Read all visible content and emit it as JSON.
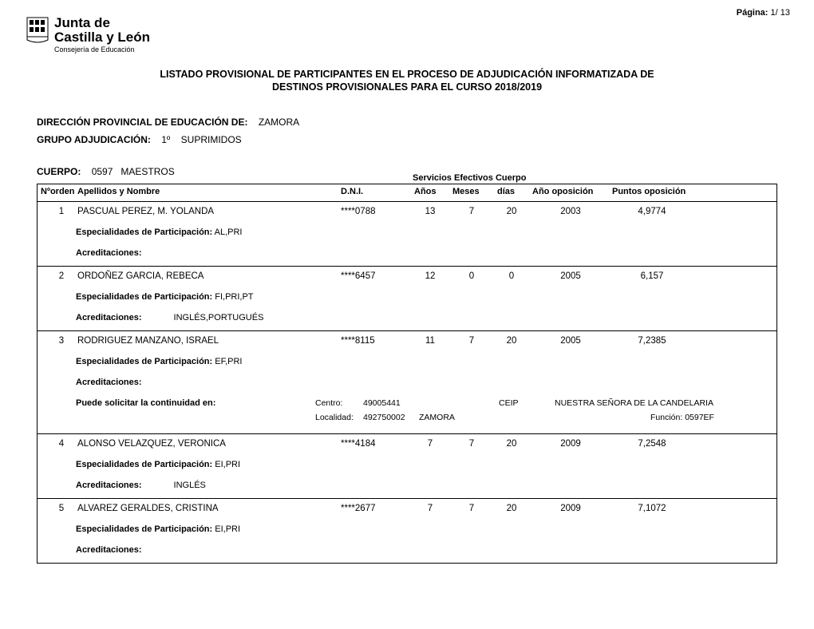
{
  "page": {
    "label": "Página:",
    "value": "1/ 13"
  },
  "logo": {
    "line1": "Junta de",
    "line2": "Castilla y León",
    "line3": "Consejería de Educación"
  },
  "title": {
    "line1": "LISTADO PROVISIONAL DE PARTICIPANTES EN EL PROCESO DE ADJUDICACIÓN INFORMATIZADA DE",
    "line2": "DESTINOS PROVISIONALES PARA EL CURSO 2018/2019"
  },
  "meta": {
    "direccion_lbl": "DIRECCIÓN PROVINCIAL DE EDUCACIÓN DE:",
    "direccion_val": "ZAMORA",
    "grupo_lbl": "GRUPO ADJUDICACIÓN:",
    "grupo_num": "1º",
    "grupo_val": "SUPRIMIDOS",
    "cuerpo_lbl": "CUERPO:",
    "cuerpo_code": "0597",
    "cuerpo_val": "MAESTROS"
  },
  "columns": {
    "serv_efect": "Servicios Efectivos Cuerpo",
    "orden": "Nºorden",
    "nombre": "Apellidos y Nombre",
    "dni": "D.N.I.",
    "anos": "Años",
    "meses": "Meses",
    "dias": "días",
    "ano_op": "Año oposición",
    "puntos": "Puntos oposición"
  },
  "labels": {
    "esp": "Especialidades de Participación:",
    "acred": "Acreditaciones:",
    "cont": "Puede solicitar la continuidad en:",
    "centro": "Centro:",
    "localidad": "Localidad:",
    "funcion": "Función:"
  },
  "rows": [
    {
      "orden": "1",
      "nombre": "PASCUAL PEREZ, M. YOLANDA",
      "dni": "****0788",
      "anos": "13",
      "meses": "7",
      "dias": "20",
      "ano_op": "2003",
      "puntos": "4,9774",
      "esp": "AL,PRI",
      "acred": ""
    },
    {
      "orden": "2",
      "nombre": "ORDOÑEZ GARCIA, REBECA",
      "dni": "****6457",
      "anos": "12",
      "meses": "0",
      "dias": "0",
      "ano_op": "2005",
      "puntos": "6,157",
      "esp": "FI,PRI,PT",
      "acred": "INGLÉS,PORTUGUÉS"
    },
    {
      "orden": "3",
      "nombre": "RODRIGUEZ MANZANO, ISRAEL",
      "dni": "****8115",
      "anos": "11",
      "meses": "7",
      "dias": "20",
      "ano_op": "2005",
      "puntos": "7,2385",
      "esp": "EF,PRI",
      "acred": "",
      "cont": {
        "centro_code": "49005441",
        "centro_tipo": "CEIP",
        "centro_nombre": "NUESTRA SEÑORA DE LA CANDELARIA",
        "localidad_code": "492750002",
        "localidad_nombre": "ZAMORA",
        "funcion": "0597EF"
      }
    },
    {
      "orden": "4",
      "nombre": "ALONSO VELAZQUEZ, VERONICA",
      "dni": "****4184",
      "anos": "7",
      "meses": "7",
      "dias": "20",
      "ano_op": "2009",
      "puntos": "7,2548",
      "esp": "EI,PRI",
      "acred": "INGLÉS"
    },
    {
      "orden": "5",
      "nombre": "ALVAREZ GERALDES, CRISTINA",
      "dni": "****2677",
      "anos": "7",
      "meses": "7",
      "dias": "20",
      "ano_op": "2009",
      "puntos": "7,1072",
      "esp": "EI,PRI",
      "acred": ""
    }
  ]
}
